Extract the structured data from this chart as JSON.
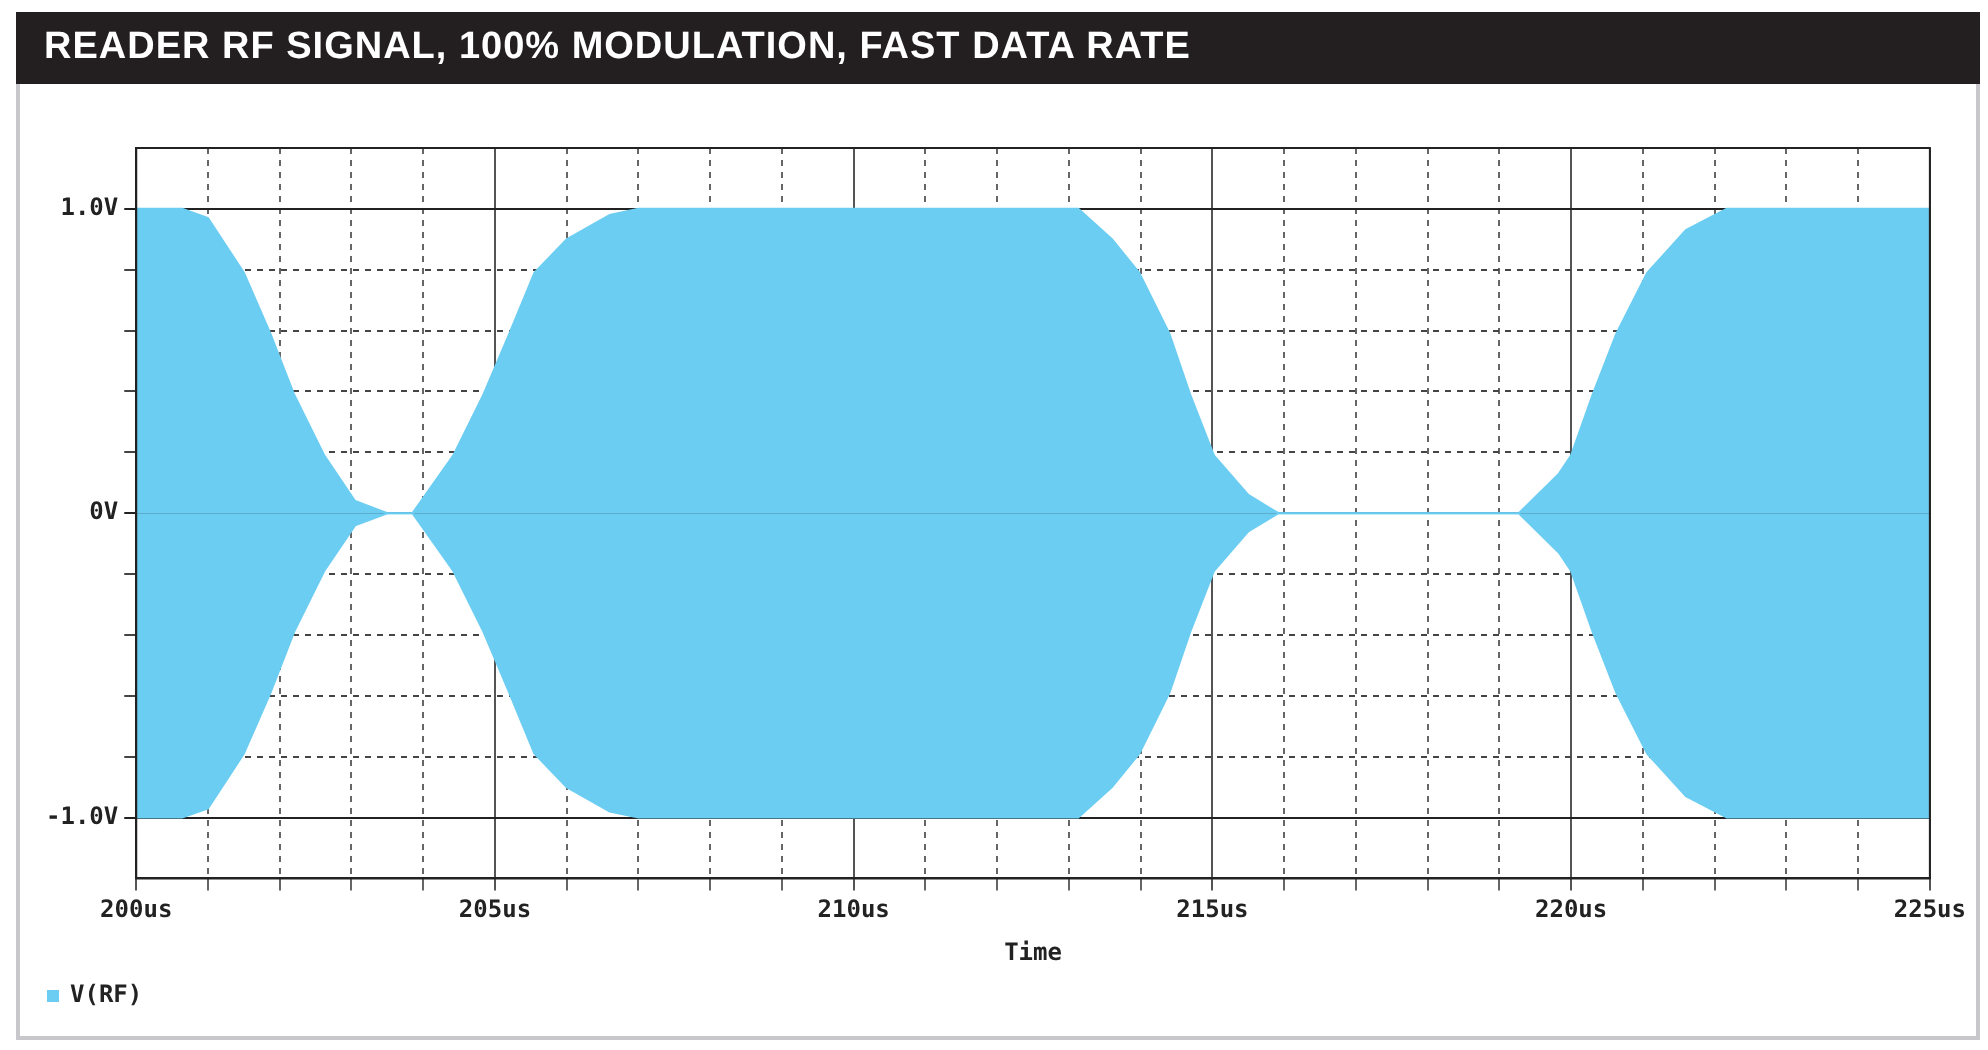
{
  "chart_data": {
    "type": "area",
    "title": "READER RF SIGNAL, 100% MODULATION, FAST DATA RATE",
    "xlabel": "Time",
    "x": [
      200,
      200.64,
      201,
      201.5,
      201.87,
      202.2,
      202.62,
      203.05,
      203.5,
      203.85,
      204.42,
      204.84,
      205.2,
      205.55,
      206,
      206.6,
      207,
      213.13,
      213.6,
      213.98,
      214.4,
      214.69,
      215.02,
      215.5,
      215.92,
      219.27,
      219.83,
      220,
      220.3,
      220.63,
      221.06,
      221.6,
      222.17,
      225
    ],
    "series": [
      {
        "name": "V(RF)",
        "color": "#6ccdf2",
        "values": [
          1,
          1,
          0.97,
          0.79,
          0.59,
          0.39,
          0.19,
          0.04,
          0,
          0,
          0.19,
          0.39,
          0.59,
          0.79,
          0.9,
          0.98,
          1,
          1,
          0.9,
          0.79,
          0.59,
          0.39,
          0.19,
          0.06,
          0,
          0,
          0.13,
          0.19,
          0.39,
          0.59,
          0.79,
          0.93,
          1,
          1
        ]
      },
      {
        "color": "#6ccdf2",
        "values": [
          -1,
          -1,
          -0.97,
          -0.79,
          -0.59,
          -0.39,
          -0.19,
          -0.04,
          0,
          0,
          -0.19,
          -0.39,
          -0.59,
          -0.79,
          -0.9,
          -0.98,
          -1,
          -1,
          -0.9,
          -0.79,
          -0.59,
          -0.39,
          -0.19,
          -0.06,
          0,
          0,
          -0.13,
          -0.19,
          -0.39,
          -0.59,
          -0.79,
          -0.93,
          -1,
          -1
        ]
      }
    ],
    "xlim": [
      200,
      225
    ],
    "xticks": [
      {
        "value": 200,
        "label": "200us"
      },
      {
        "value": 201,
        "label": null
      },
      {
        "value": 202,
        "label": null
      },
      {
        "value": 203,
        "label": null
      },
      {
        "value": 204,
        "label": null
      },
      {
        "value": 205,
        "label": "205us"
      },
      {
        "value": 206,
        "label": null
      },
      {
        "value": 207,
        "label": null
      },
      {
        "value": 208,
        "label": null
      },
      {
        "value": 209,
        "label": null
      },
      {
        "value": 210,
        "label": "210us"
      },
      {
        "value": 211,
        "label": null
      },
      {
        "value": 212,
        "label": null
      },
      {
        "value": 213,
        "label": null
      },
      {
        "value": 214,
        "label": null
      },
      {
        "value": 215,
        "label": "215us"
      },
      {
        "value": 216,
        "label": null
      },
      {
        "value": 217,
        "label": null
      },
      {
        "value": 218,
        "label": null
      },
      {
        "value": 219,
        "label": null
      },
      {
        "value": 220,
        "label": "220us"
      },
      {
        "value": 221,
        "label": null
      },
      {
        "value": 222,
        "label": null
      },
      {
        "value": 223,
        "label": null
      },
      {
        "value": 224,
        "label": null
      },
      {
        "value": 225,
        "label": "225us"
      }
    ],
    "ylim": [
      -1.2,
      1.2
    ],
    "yticks": [
      {
        "value": -1,
        "label": "-1.0V"
      },
      {
        "value": -0.8,
        "label": null
      },
      {
        "value": -0.6,
        "label": null
      },
      {
        "value": -0.4,
        "label": null
      },
      {
        "value": -0.2,
        "label": null
      },
      {
        "value": 0,
        "label": "0V"
      },
      {
        "value": 0.2,
        "label": null
      },
      {
        "value": 0.4,
        "label": null
      },
      {
        "value": 0.6,
        "label": null
      },
      {
        "value": 0.8,
        "label": null
      },
      {
        "value": 1,
        "label": "1.0V"
      }
    ],
    "grid": true,
    "legend": "bottom left"
  }
}
